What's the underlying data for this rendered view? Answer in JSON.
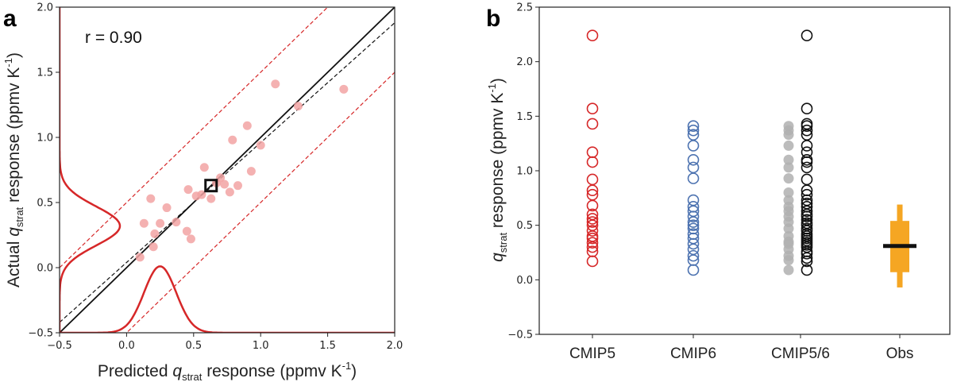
{
  "colors": {
    "red": "#d62728",
    "pink": "#f2a3a3",
    "blue": "#4c72b0",
    "gray": "#b0b0b0",
    "black": "#111111",
    "orange": "#f5a623"
  },
  "chart_data": [
    {
      "panel": "a",
      "type": "scatter",
      "title": "",
      "xlabel": "Predicted q_strat response (ppmv K-1)",
      "ylabel": "Actual q_strat response (ppmv K-1)",
      "xlim": [
        -0.5,
        2.0
      ],
      "ylim": [
        -0.5,
        2.0
      ],
      "xticks": [
        "−0.5",
        "0.0",
        "0.5",
        "1.0",
        "1.5",
        "2.0"
      ],
      "yticks": [
        "−0.5",
        "0.0",
        "0.5",
        "1.0",
        "1.5",
        "2.0"
      ],
      "annotation": "r = 0.90",
      "points": [
        {
          "x": 0.1,
          "y": 0.08
        },
        {
          "x": 0.13,
          "y": 0.34
        },
        {
          "x": 0.18,
          "y": 0.53
        },
        {
          "x": 0.2,
          "y": 0.16
        },
        {
          "x": 0.21,
          "y": 0.26
        },
        {
          "x": 0.25,
          "y": 0.34
        },
        {
          "x": 0.3,
          "y": 0.46
        },
        {
          "x": 0.37,
          "y": 0.35
        },
        {
          "x": 0.45,
          "y": 0.28
        },
        {
          "x": 0.46,
          "y": 0.6
        },
        {
          "x": 0.48,
          "y": 0.22
        },
        {
          "x": 0.52,
          "y": 0.55
        },
        {
          "x": 0.56,
          "y": 0.56
        },
        {
          "x": 0.58,
          "y": 0.77
        },
        {
          "x": 0.63,
          "y": 0.53
        },
        {
          "x": 0.67,
          "y": 0.65
        },
        {
          "x": 0.7,
          "y": 0.69
        },
        {
          "x": 0.73,
          "y": 0.64
        },
        {
          "x": 0.77,
          "y": 0.58
        },
        {
          "x": 0.79,
          "y": 0.98
        },
        {
          "x": 0.83,
          "y": 0.63
        },
        {
          "x": 0.9,
          "y": 1.09
        },
        {
          "x": 0.93,
          "y": 0.74
        },
        {
          "x": 1.0,
          "y": 0.94
        },
        {
          "x": 1.11,
          "y": 1.41
        },
        {
          "x": 1.28,
          "y": 1.24
        },
        {
          "x": 1.62,
          "y": 1.37
        }
      ],
      "marker_square": {
        "x": 0.63,
        "y": 0.63
      },
      "lines": {
        "one_to_one": {
          "slope": 1.0,
          "intercept": 0.0
        },
        "regression": {
          "slope": 0.92,
          "intercept": 0.04
        },
        "prediction_band": {
          "slope": 1.0,
          "offsets": [
            0.5,
            -0.5
          ]
        }
      },
      "pdf_predicted": {
        "mean": 0.25,
        "sd": 0.12,
        "peak_y": 0.01
      },
      "pdf_actual": {
        "mean": 0.32,
        "sd": 0.15,
        "peak_x": -0.05
      }
    },
    {
      "panel": "b",
      "type": "scatter",
      "title": "",
      "xlabel": "",
      "ylabel": "q_strat response (ppmv K-1)",
      "ylim": [
        -0.5,
        2.5
      ],
      "yticks": [
        "−0.5",
        "0.0",
        "0.5",
        "1.0",
        "1.5",
        "2.0",
        "2.5"
      ],
      "categories": [
        "CMIP5",
        "CMIP6",
        "CMIP5/6",
        "Obs"
      ],
      "series": [
        {
          "category": "CMIP5",
          "style": "open-red",
          "values": [
            0.17,
            0.26,
            0.3,
            0.34,
            0.38,
            0.4,
            0.45,
            0.5,
            0.53,
            0.56,
            0.6,
            0.68,
            0.78,
            0.82,
            0.92,
            1.08,
            1.17,
            1.43,
            1.57,
            2.24
          ]
        },
        {
          "category": "CMIP6",
          "style": "open-blue",
          "values": [
            0.09,
            0.18,
            0.22,
            0.28,
            0.33,
            0.38,
            0.42,
            0.47,
            0.5,
            0.53,
            0.58,
            0.63,
            0.67,
            0.73,
            0.93,
            1.03,
            1.1,
            1.23,
            1.33,
            1.37,
            1.41
          ]
        },
        {
          "category": "CMIP5/6",
          "style": "filled-gray",
          "values": [
            0.09,
            0.18,
            0.22,
            0.28,
            0.33,
            0.35,
            0.4,
            0.47,
            0.53,
            0.58,
            0.63,
            0.67,
            0.73,
            0.8,
            0.93,
            1.03,
            1.1,
            1.23,
            1.33,
            1.37,
            1.41
          ]
        },
        {
          "category": "CMIP5/6",
          "style": "open-black",
          "values": [
            0.09,
            0.17,
            0.2,
            0.24,
            0.26,
            0.3,
            0.32,
            0.34,
            0.36,
            0.38,
            0.4,
            0.42,
            0.45,
            0.47,
            0.5,
            0.52,
            0.55,
            0.58,
            0.6,
            0.63,
            0.67,
            0.7,
            0.73,
            0.78,
            0.82,
            0.92,
            1.03,
            1.08,
            1.1,
            1.17,
            1.23,
            1.33,
            1.37,
            1.41,
            1.43,
            1.57,
            2.24
          ]
        }
      ],
      "obs": {
        "category": "Obs",
        "best": 0.31,
        "likely_range": [
          0.07,
          0.54
        ],
        "very_likely_range": [
          -0.07,
          0.69
        ]
      }
    }
  ],
  "labels": {
    "panel_a": "a",
    "panel_b": "b",
    "annotation": "r = 0.90",
    "xlabel_a": {
      "pre": "Predicted ",
      "q": "q",
      "sub": "strat",
      "post": " response (ppmv K",
      "sup": "-1",
      "end": ")"
    },
    "ylabel_a": {
      "pre": "Actual ",
      "q": "q",
      "sub": "strat",
      "post": " response (ppmv K",
      "sup": "-1",
      "end": ")"
    },
    "ylabel_b": {
      "q": "q",
      "sub": "strat",
      "post": " response (ppmv K",
      "sup": "-1",
      "end": ")"
    }
  }
}
